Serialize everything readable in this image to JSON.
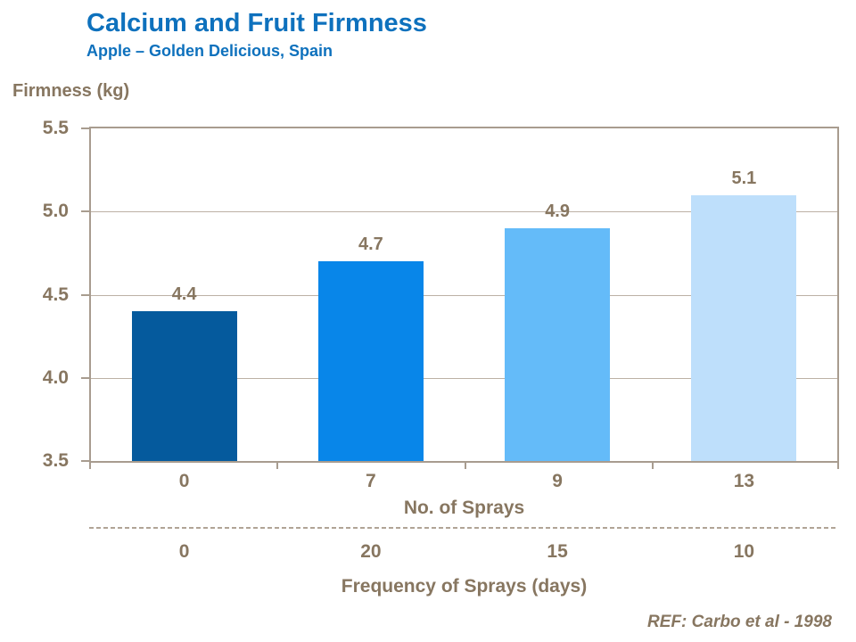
{
  "header": {
    "title": "Calcium and Fruit Firmness",
    "subtitle": "Apple – Golden Delicious, Spain"
  },
  "chart_data": {
    "type": "bar",
    "title": "Calcium and Fruit Firmness",
    "subtitle": "Apple – Golden Delicious, Spain",
    "ylabel": "Firmness (kg)",
    "ylim": [
      3.5,
      5.5
    ],
    "yticks": [
      3.5,
      4.0,
      4.5,
      5.0,
      5.5
    ],
    "ytick_labels": [
      "3.5",
      "4.0",
      "4.5",
      "5.0",
      "5.5"
    ],
    "categories": [
      "0",
      "7",
      "9",
      "13"
    ],
    "values": [
      4.4,
      4.7,
      4.9,
      5.1
    ],
    "value_labels": [
      "4.4",
      "4.7",
      "4.9",
      "5.1"
    ],
    "bar_colors": [
      "#055a9d",
      "#0886e9",
      "#64bbf9",
      "#bedffb"
    ],
    "xlabel": "No. of Sprays",
    "secondary_categories": [
      "0",
      "20",
      "15",
      "10"
    ],
    "secondary_xlabel": "Frequency of Sprays (days)",
    "grid": true,
    "legend_position": "none",
    "annotation": "REF: Carbo et al - 1998"
  },
  "footer": {
    "ref": "REF: Carbo et al - 1998"
  },
  "colors": {
    "title_blue": "#0e71bd",
    "text_taupe": "#877660",
    "axis": "#a89c8f",
    "gridline": "#bcb1a5"
  }
}
